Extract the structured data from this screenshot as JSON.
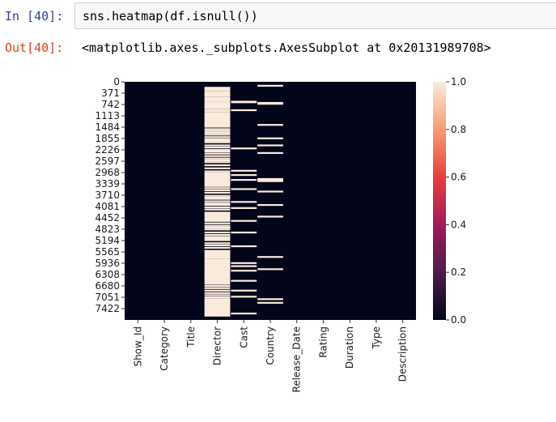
{
  "cells": {
    "in_prompt": "In [40]:",
    "code": "sns.heatmap(df.isnull())",
    "out_prompt": "Out[40]:",
    "output": "<matplotlib.axes._subplots.AxesSubplot at 0x20131989708>"
  },
  "chart_data": {
    "type": "heatmap",
    "title": "",
    "xlabel": "",
    "ylabel": "",
    "columns": [
      "Show_Id",
      "Category",
      "Title",
      "Director",
      "Cast",
      "Country",
      "Release_Date",
      "Rating",
      "Duration",
      "Type",
      "Description"
    ],
    "row_tick_labels": [
      "0",
      "371",
      "742",
      "1113",
      "1484",
      "1855",
      "2226",
      "2597",
      "2968",
      "3339",
      "3710",
      "4081",
      "4452",
      "4823",
      "5194",
      "5565",
      "5936",
      "6308",
      "6680",
      "7051",
      "7422"
    ],
    "row_range": [
      0,
      7789
    ],
    "value_range": [
      0.0,
      1.0
    ],
    "colorbar_ticks": [
      "0.0",
      "0.2",
      "0.4",
      "0.6",
      "0.8",
      "1.0"
    ],
    "colormap": [
      "#03051a",
      "#4c1d4b",
      "#a11a5b",
      "#e83f3f",
      "#f69c73",
      "#faebdd"
    ],
    "missing_rows": {
      "Director": [
        165,
        190,
        240,
        300,
        350,
        390,
        410,
        440,
        500,
        540,
        590,
        650,
        700,
        720,
        760,
        800,
        820,
        880,
        930,
        990,
        1030,
        1080,
        1110,
        1150,
        1200,
        1250,
        1300,
        1350,
        1390,
        1440,
        1520,
        1580,
        1640,
        1700,
        1780,
        1850,
        1900,
        1950,
        2050,
        2120,
        2200,
        2250,
        2320,
        2400,
        2480,
        2540,
        2600,
        2700,
        2800,
        2900,
        2960,
        3000,
        3050,
        3100,
        3150,
        3200,
        3240,
        3280,
        3330,
        3380,
        3450,
        3520,
        3600,
        3700,
        3760,
        3800,
        3880,
        3950,
        4000,
        4080,
        4150,
        4250,
        4300,
        4350,
        4400,
        4450,
        4480,
        4520,
        4600,
        4680,
        4740,
        4800,
        4900,
        4980,
        5050,
        5100,
        5150,
        5250,
        5320,
        5400,
        5500,
        5550,
        5600,
        5650,
        5700,
        5740,
        5800,
        5850,
        5900,
        5950,
        6000,
        6050,
        6100,
        6150,
        6200,
        6250,
        6300,
        6330,
        6360,
        6400,
        6430,
        6480,
        6530,
        6580,
        6650,
        6720,
        6800,
        6880,
        6950,
        7020,
        7080,
        7120,
        7160,
        7200,
        7240,
        7280,
        7320,
        7360,
        7400,
        7450,
        7500,
        7540,
        7580,
        7620
      ],
      "Cast": [
        620,
        640,
        900,
        2150,
        2880,
        3020,
        3180,
        3480,
        3900,
        4100,
        4520,
        4900,
        5350,
        5900,
        6000,
        6150,
        6480,
        6800,
        7000,
        7550
      ],
      "Country": [
        100,
        660,
        690,
        1380,
        1820,
        2050,
        2300,
        3150,
        3190,
        3220,
        3560,
        4000,
        4380,
        5700,
        6100,
        7080,
        7200
      ]
    }
  }
}
